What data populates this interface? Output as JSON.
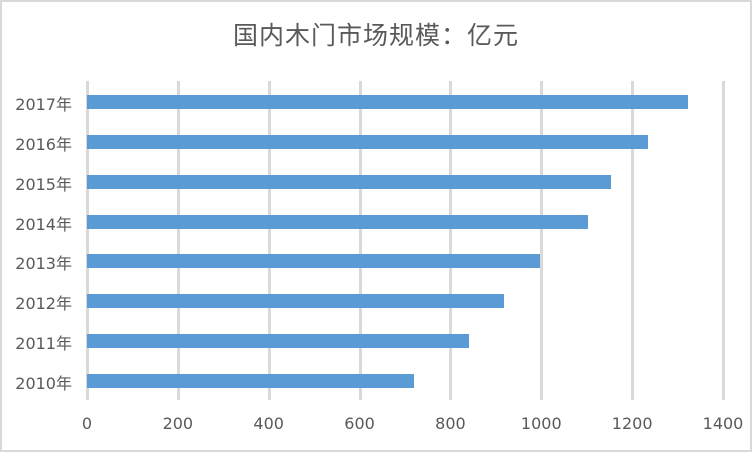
{
  "chart_data": {
    "type": "bar",
    "orientation": "horizontal",
    "title": "国内木门市场规模：亿元",
    "categories": [
      "2017年",
      "2016年",
      "2015年",
      "2014年",
      "2013年",
      "2012年",
      "2011年",
      "2010年"
    ],
    "values": [
      1323,
      1235,
      1153,
      1103,
      997,
      918,
      841,
      720
    ],
    "xlabel": "",
    "ylabel": "",
    "xlim": [
      0,
      1400
    ],
    "xticks": [
      "0",
      "200",
      "400",
      "600",
      "800",
      "1000",
      "1200",
      "1400"
    ],
    "grid": true,
    "legend": "none",
    "bar_color": "#5b9bd5"
  }
}
